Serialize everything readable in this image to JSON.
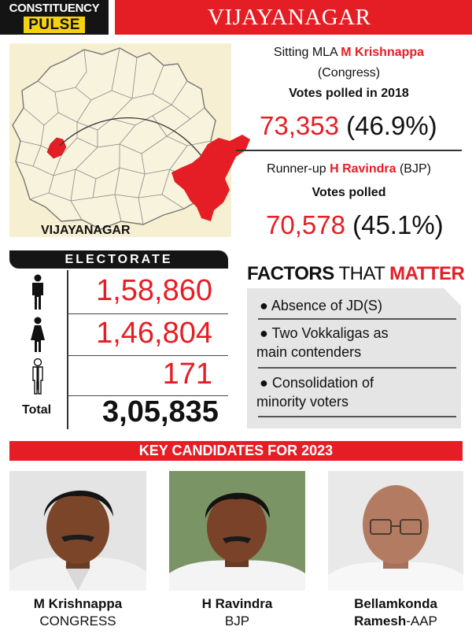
{
  "header": {
    "line1": "CONSTITUENCY",
    "line2": "PULSE",
    "title": "VIJAYANAGAR"
  },
  "map": {
    "label": "VIJAYANAGAR"
  },
  "sitting": {
    "prefix": "Sitting MLA ",
    "name": "M Krishnappa",
    "party": "(Congress)",
    "votes_label": "Votes polled in 2018",
    "votes": "73,353",
    "percent": "(46.9%)"
  },
  "runner_up": {
    "prefix": "Runner-up ",
    "name": "H Ravindra",
    "party": " (BJP)",
    "votes_label": "Votes polled",
    "votes": "70,578",
    "percent": "(45.1%)"
  },
  "electorate": {
    "title": "ELECTORATE",
    "male": "1,58,860",
    "female": "1,46,804",
    "other": "171",
    "total_label": "Total",
    "total": "3,05,835"
  },
  "factors": {
    "title_a": "FACTORS",
    "title_b": " THAT ",
    "title_c": "MATTER",
    "items": [
      {
        "line1": "● Absence of JD(S)",
        "line2": ""
      },
      {
        "line1": "● Two Vokkaligas as",
        "line2": "main contenders"
      },
      {
        "line1": "● Consolidation of",
        "line2": "minority voters"
      }
    ]
  },
  "candidates": {
    "title": "KEY CANDIDATES FOR 2023",
    "list": [
      {
        "name": "M Krishnappa",
        "party": "CONGRESS"
      },
      {
        "name": "H Ravindra",
        "party": "BJP"
      },
      {
        "name": "Bellamkonda",
        "party_pre": "Ramesh",
        "party": "-AAP"
      }
    ]
  },
  "colors": {
    "accent_red": "#e51e25",
    "header_dark": "#141414",
    "pulse_yellow": "#f5d20f",
    "map_bg": "#f6efd2",
    "factors_bg": "#e5e5e5"
  }
}
